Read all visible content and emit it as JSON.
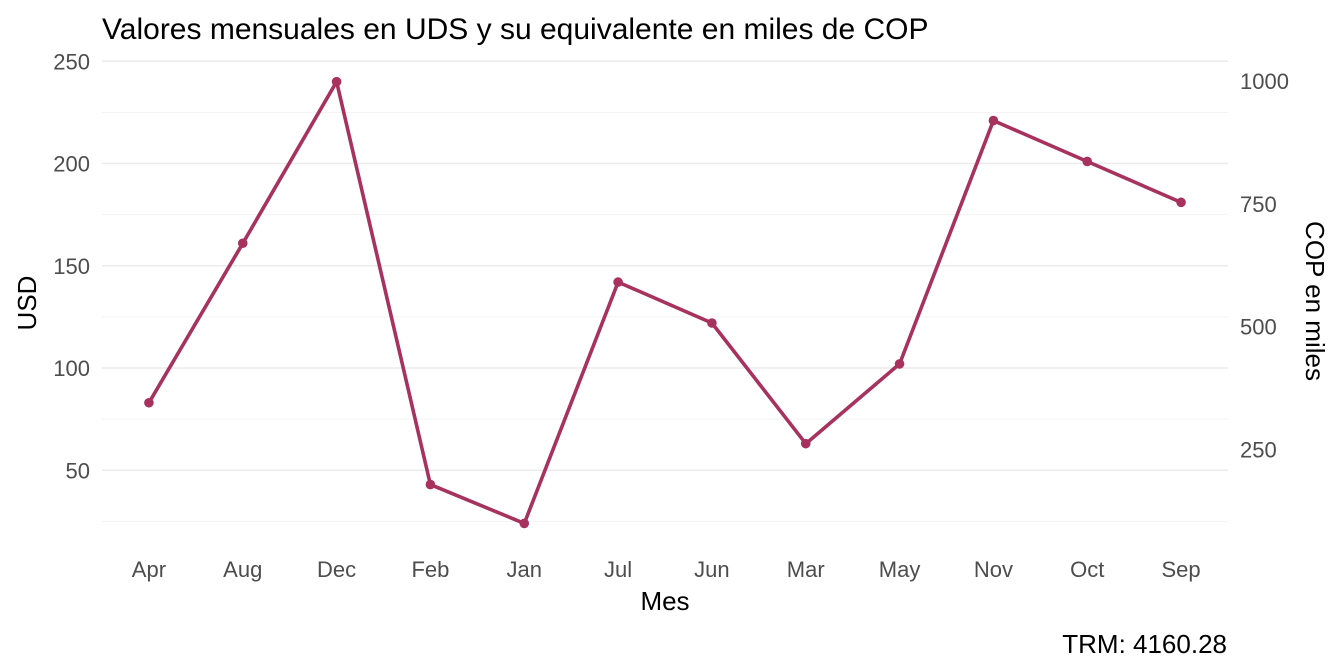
{
  "chart_data": {
    "type": "line",
    "title": "Valores mensuales en UDS y su equivalente en miles de COP",
    "xlabel": "Mes",
    "ylabel": "USD",
    "ylabel_right": "COP en miles",
    "caption": "TRM:  4160.28",
    "categories": [
      "Apr",
      "Aug",
      "Dec",
      "Feb",
      "Jan",
      "Jul",
      "Jun",
      "Mar",
      "May",
      "Nov",
      "Oct",
      "Sep"
    ],
    "series": [
      {
        "values": [
          83,
          161,
          240,
          43,
          24,
          142,
          122,
          63,
          102,
          221,
          201,
          181
        ]
      }
    ],
    "ylim": [
      20,
      250
    ],
    "yticks": [
      "50",
      "100",
      "150",
      "200",
      "250"
    ],
    "yticks_right": [
      "250",
      "500",
      "750",
      "1000"
    ],
    "right_axis_factor_thousands": 4.16028,
    "grid": true,
    "legend": "none",
    "line_color": "#a8325e"
  }
}
